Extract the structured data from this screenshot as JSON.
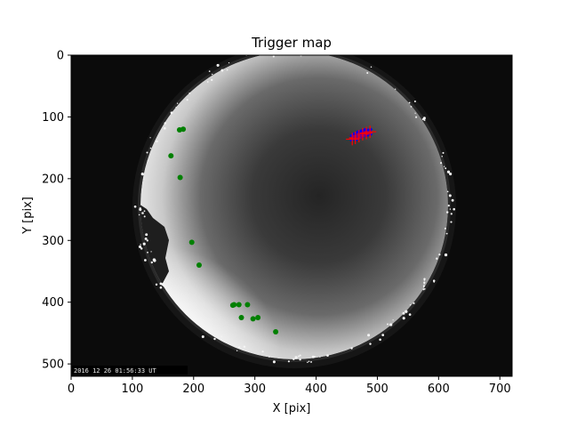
{
  "chart_data": {
    "type": "scatter",
    "title": "Trigger map",
    "xlabel": "X [pix]",
    "ylabel": "Y [pix]",
    "xlim": [
      0,
      720
    ],
    "ylim": [
      520,
      0
    ],
    "y_inverted": true,
    "grid": false,
    "background": "all-sky camera image (fisheye) shown behind the markers",
    "image_timestamp": "2016 12 26 01:56:33 UT",
    "xticks": [
      0,
      100,
      200,
      300,
      400,
      500,
      600,
      700
    ],
    "yticks": [
      0,
      100,
      200,
      300,
      400,
      500
    ],
    "series": [
      {
        "color": "#008000",
        "marker": "circle",
        "points": [
          {
            "x": 177,
            "y": 121
          },
          {
            "x": 183,
            "y": 120
          },
          {
            "x": 163,
            "y": 163
          },
          {
            "x": 178,
            "y": 198
          },
          {
            "x": 197,
            "y": 303
          },
          {
            "x": 209,
            "y": 340
          },
          {
            "x": 264,
            "y": 405
          },
          {
            "x": 266,
            "y": 404
          },
          {
            "x": 274,
            "y": 404
          },
          {
            "x": 288,
            "y": 404
          },
          {
            "x": 278,
            "y": 425
          },
          {
            "x": 297,
            "y": 427
          },
          {
            "x": 305,
            "y": 425
          },
          {
            "x": 334,
            "y": 448
          }
        ]
      },
      {
        "color": "#0000ff",
        "marker": "cross",
        "points": [
          {
            "x": 461,
            "y": 134
          },
          {
            "x": 464,
            "y": 132
          },
          {
            "x": 466,
            "y": 131
          },
          {
            "x": 468,
            "y": 130
          },
          {
            "x": 470,
            "y": 129
          },
          {
            "x": 472,
            "y": 128
          },
          {
            "x": 474,
            "y": 127
          },
          {
            "x": 476,
            "y": 127
          },
          {
            "x": 478,
            "y": 126
          },
          {
            "x": 480,
            "y": 126
          },
          {
            "x": 482,
            "y": 125
          },
          {
            "x": 484,
            "y": 124
          },
          {
            "x": 486,
            "y": 124
          }
        ]
      },
      {
        "color": "#ff0000",
        "marker": "plus",
        "points": [
          {
            "x": 459,
            "y": 136
          },
          {
            "x": 464,
            "y": 134
          },
          {
            "x": 470,
            "y": 131
          },
          {
            "x": 476,
            "y": 128
          },
          {
            "x": 482,
            "y": 126
          },
          {
            "x": 488,
            "y": 124
          }
        ]
      }
    ]
  }
}
